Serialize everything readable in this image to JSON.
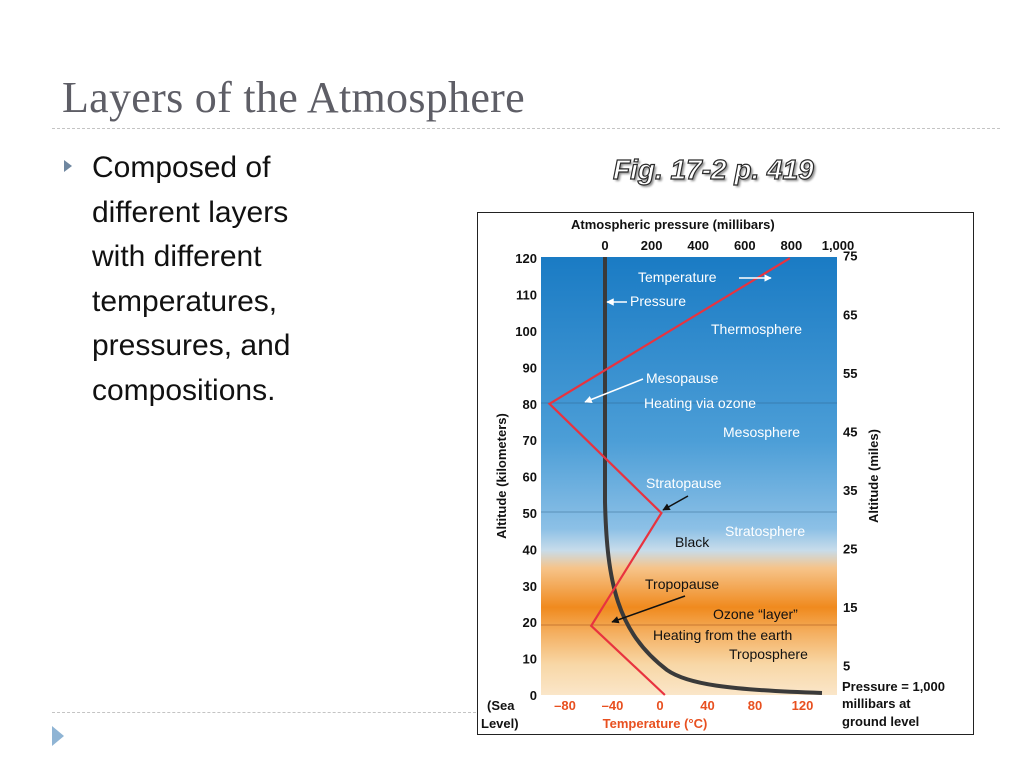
{
  "slide": {
    "title": "Layers of the Atmosphere",
    "bullet": "Composed of different layers with different temperatures, pressures, and compositions.",
    "figure_caption": "Fig. 17-2 p. 419"
  },
  "icons": {
    "bullet": "triangle-bullet-icon",
    "nav": "play-arrow-icon"
  },
  "colors": {
    "title": "#5e5e66",
    "bullet_marker": "#6f87a0",
    "upper_atmosphere": "#1a7bc4",
    "lower_atmosphere": "#f08a1e",
    "temperature_line": "#e8333f",
    "pressure_line": "#3a3a3a",
    "temperature_label": "#e85020"
  },
  "diagram": {
    "top_axis_title": "Atmospheric pressure (millibars)",
    "bottom_axis_title": "Temperature (°C)",
    "left_axis_title": "Altitude (kilometers)",
    "right_axis_title": "Altitude (miles)",
    "pressure_ticks": [
      "0",
      "200",
      "400",
      "600",
      "800",
      "1,000"
    ],
    "temperature_ticks": [
      "–80",
      "–40",
      "0",
      "40",
      "80",
      "120"
    ],
    "km_ticks": [
      "0",
      "10",
      "20",
      "30",
      "40",
      "50",
      "60",
      "70",
      "80",
      "90",
      "100",
      "110",
      "120"
    ],
    "mile_ticks": [
      "5",
      "15",
      "25",
      "35",
      "45",
      "55",
      "65",
      "75"
    ],
    "sea_level_label": [
      "(Sea",
      "Level)"
    ],
    "pressure_note": [
      "Pressure = 1,000",
      "millibars at",
      "ground level"
    ],
    "labels": {
      "temperature": "Temperature",
      "pressure": "Pressure",
      "thermosphere": "Thermosphere",
      "mesopause": "Mesopause",
      "heating_ozone": "Heating via ozone",
      "mesosphere": "Mesosphere",
      "stratopause": "Stratopause",
      "stratosphere": "Stratosphere",
      "black": "Black",
      "tropopause": "Tropopause",
      "ozone_layer": "Ozone “layer”",
      "heating_earth": "Heating from the earth",
      "troposphere": "Troposphere"
    },
    "temperature_profile": [
      {
        "altitude_km": 0,
        "temperature_c": 5
      },
      {
        "altitude_km": 19,
        "temperature_c": -57
      },
      {
        "altitude_km": 50,
        "temperature_c": 2
      },
      {
        "altitude_km": 80,
        "temperature_c": -92
      },
      {
        "altitude_km": 120,
        "temperature_c": 110
      }
    ]
  }
}
